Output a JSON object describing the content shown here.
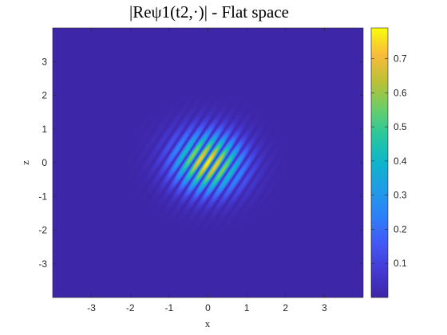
{
  "chart_data": {
    "type": "heatmap",
    "title": "|Reψ1(t2,·)| - Flat space",
    "xlabel": "x",
    "ylabel": "z",
    "xlim": [
      -4,
      4
    ],
    "ylim": [
      -4,
      4
    ],
    "xticks": [
      "-3",
      "-2",
      "-1",
      "0",
      "1",
      "2",
      "3"
    ],
    "yticks": [
      "3",
      "2",
      "1",
      "0",
      "-1",
      "-2",
      "-3"
    ],
    "colormap": "parula",
    "clim": [
      0,
      0.79
    ],
    "colorbar_ticks": [
      "0.7",
      "0.6",
      "0.5",
      "0.4",
      "0.3",
      "0.2",
      "0.1"
    ],
    "field": {
      "description": "Gaussian wave packet with oscillating stripes oriented along the diagonal",
      "amplitude": 0.79,
      "center": [
        0,
        0
      ],
      "envelope_sigma": 0.6,
      "wave_direction_deg": -30,
      "wavelength": 0.45
    }
  }
}
